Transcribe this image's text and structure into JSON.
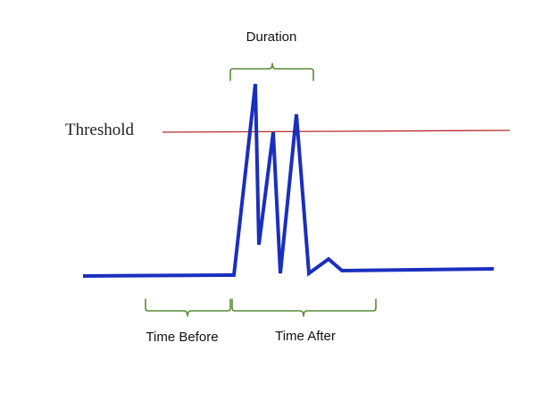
{
  "labels": {
    "duration": "Duration",
    "threshold": "Threshold",
    "time_before": "Time Before",
    "time_after": "Time After"
  },
  "colors": {
    "signal": "#1a2fbf",
    "threshold": "#b8292b",
    "brace": "#5a8a3a",
    "text": "#111111"
  }
}
